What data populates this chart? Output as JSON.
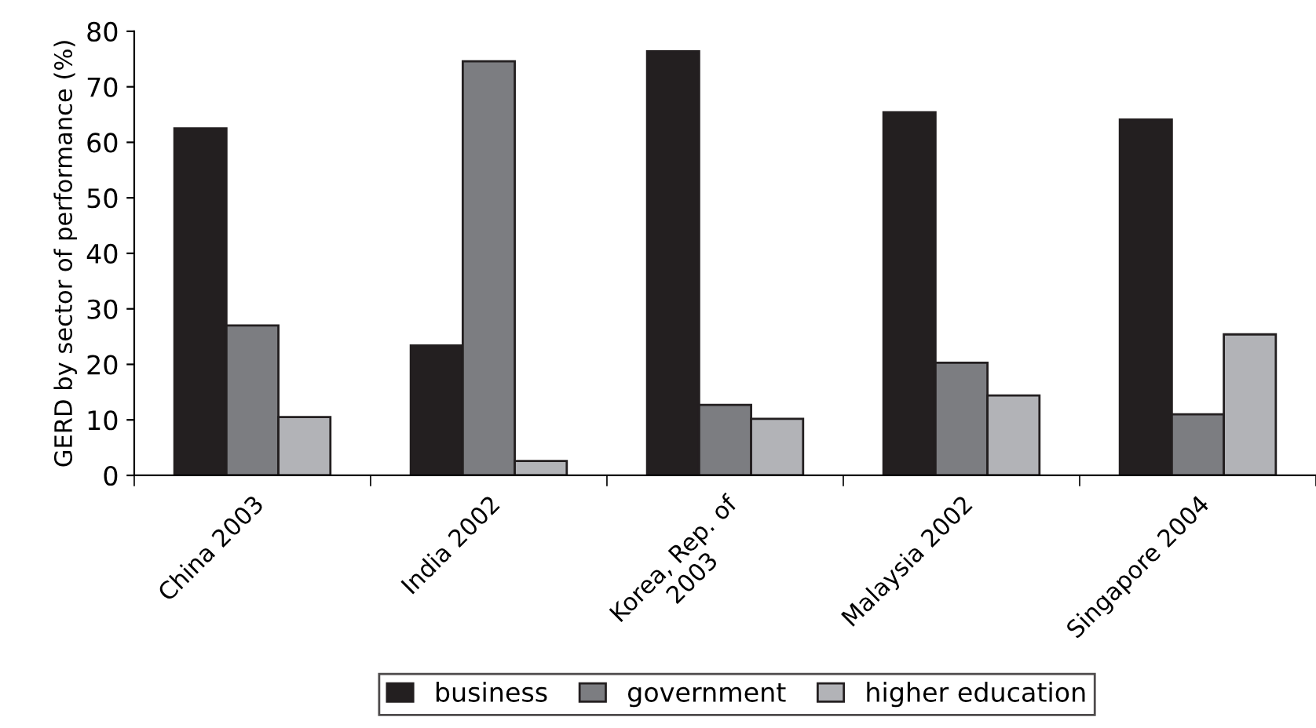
{
  "chart_data": {
    "type": "bar",
    "ylabel": "GERD by sector of performance (%)",
    "categories": [
      "China 2003",
      "India 2002",
      "Korea, Rep. of\n2003",
      "Malaysia 2002",
      "Singapore 2004"
    ],
    "series": [
      {
        "name": "business",
        "color": "#231f20",
        "values": [
          62.5,
          23.4,
          76.4,
          65.4,
          64.1
        ]
      },
      {
        "name": "government",
        "color": "#7c7d81",
        "values": [
          27.0,
          74.6,
          12.7,
          20.3,
          11.0
        ]
      },
      {
        "name": "higher education",
        "color": "#b2b3b7",
        "values": [
          10.5,
          2.6,
          10.2,
          14.4,
          25.4
        ]
      }
    ],
    "ylim": [
      0,
      80
    ],
    "yticks": [
      0,
      10,
      20,
      30,
      40,
      50,
      60,
      70,
      80
    ],
    "grid": false,
    "legend": "bottom"
  }
}
